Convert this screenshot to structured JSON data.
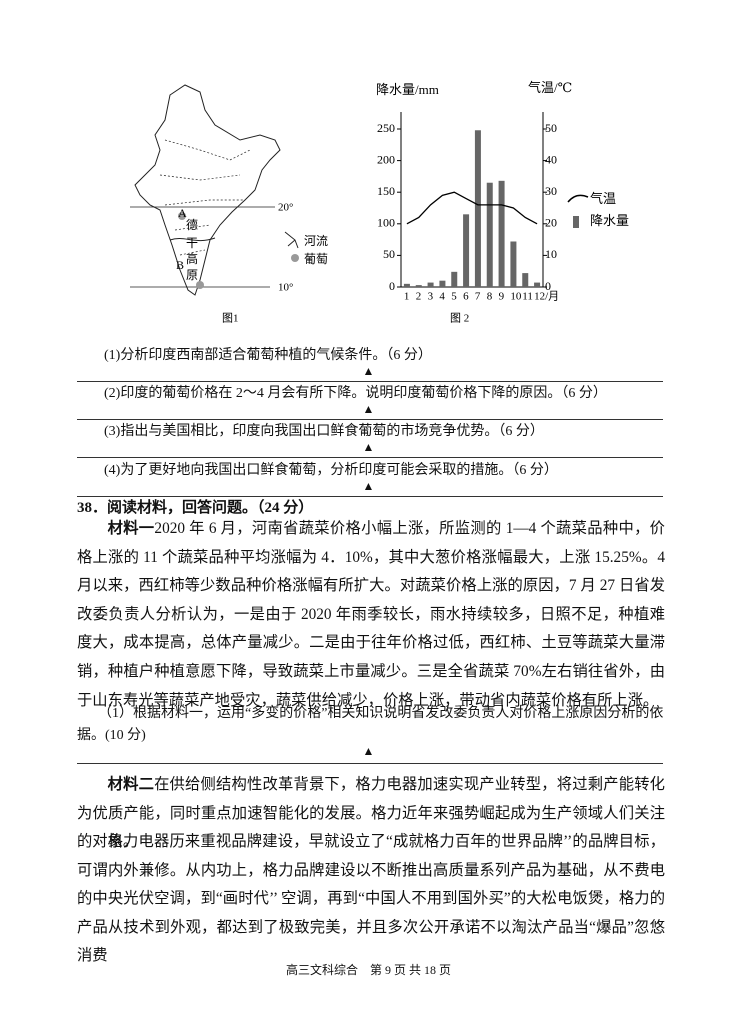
{
  "figure1": {
    "caption": "图1",
    "labels": {
      "a": "A",
      "de": "德",
      "gan": "干",
      "gao": "高",
      "b": "B",
      "yuan": "原"
    },
    "lat20": "20°",
    "lat10": "10°",
    "legend": [
      "河流",
      "葡萄"
    ]
  },
  "figure2": {
    "type": "bar-line",
    "caption": "图 2",
    "y_title": "降水量/mm",
    "y2_title": "气温/℃",
    "categories": [
      "1",
      "2",
      "3",
      "4",
      "5",
      "6",
      "7",
      "8",
      "9",
      "10",
      "11",
      "12/月"
    ],
    "precipitation": {
      "name": "降水量",
      "color": "#666666",
      "values": [
        5,
        3,
        7,
        10,
        24,
        115,
        248,
        165,
        168,
        72,
        22,
        7
      ]
    },
    "temperature": {
      "name": "气温",
      "color": "#000000",
      "axis": "y2",
      "values": [
        20,
        22,
        26,
        29,
        30,
        28,
        26,
        26,
        26,
        25,
        22,
        20
      ]
    },
    "ylim": [
      0,
      250
    ],
    "yticks": [
      0,
      50,
      100,
      150,
      200,
      250
    ],
    "y2lim": [
      0,
      50
    ],
    "y2ticks": [
      0,
      10,
      20,
      30,
      40,
      50
    ]
  },
  "questions": [
    "(1)分析印度西南部适合葡萄种植的气候条件。（6 分）",
    "(2)印度的葡萄价格在 2～4 月会有所下降。说明印度葡萄价格下降的原因。（6 分）",
    "(3)指出与美国相比，印度向我国出口鲜食葡萄的市场竞争优势。（6 分）",
    "(4)为了更好地向我国出口鲜食葡萄，分析印度可能会采取的措施。（6 分）"
  ],
  "answer_mark": "▲",
  "q38": {
    "heading": "38．阅读材料，回答问题。（24 分）",
    "material1": {
      "label": "材料一",
      "text": "2020 年 6 月，河南省蔬菜价格小幅上涨，所监测的 1—4 个蔬菜品种中，价格上涨的 11 个蔬菜品种平均涨幅为 4．10%，其中大葱价格涨幅最大，上涨 15.25%。4 月以来，西红柿等少数品种价格涨幅有所扩大。对蔬菜价格上涨的原因，7 月 27 日省发改委负责人分析认为，一是由于 2020 年雨季较长，雨水持续较多，日照不足，种植难度大，成本提高，总体产量减少。二是由于往年价格过低，西红柿、土豆等蔬菜大量滞销，种植户种植意愿下降，导致蔬菜上市量减少。三是全省蔬菜 70%左右销往省外，由于山东寿光等蔬菜产地受灾，蔬菜供给减少，价格上涨，带动省内蔬菜价格有所上涨。"
    },
    "sub1": "（1）根据材料一，运用“多变的价格”相关知识说明省发改委负责人对价格上涨原因分析的依据。(10 分)",
    "material2": {
      "label": "材料二",
      "text": "在供给侧结构性改革背景下，格力电器加速实现产业转型，将过剩产能转化为优质产能，同时重点加速智能化的发展。格力近年来强势崛起成为生产领域人们关注的对象。"
    },
    "para2": "格力电器历来重视品牌建设，早就设立了“成就格力百年的世界品牌’’的品牌目标，可谓内外兼修。从内功上，格力品牌建设以不断推出高质量系列产品为基础，从不费电的中央光伏空调，到“画时代’’ 空调，再到“中国人不用到国外买”的大松电饭煲，格力的产品从技术到外观，都达到了极致完美，并且多次公开承诺不以淘汰产品当“爆品”忽悠消费"
  },
  "footer": "高三文科综合　第 9 页 共 18 页"
}
